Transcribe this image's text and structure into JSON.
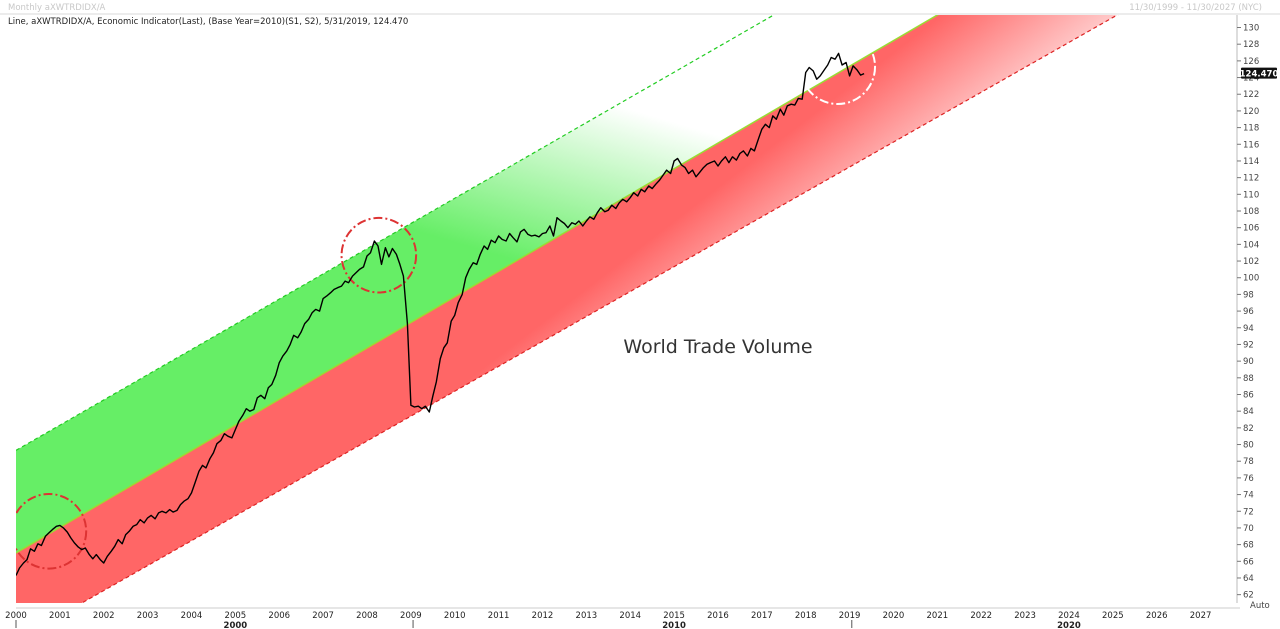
{
  "header": {
    "title": "Monthly aXWTRDIDX/A",
    "date_range": "11/30/1999 - 11/30/2027 (NYC)",
    "legend": "Line, aXWTRDIDX/A, Economic Indicator(Last), (Base Year=2010)(S1, S2), 5/31/2019, 124.470"
  },
  "auto_label": "Auto",
  "colors": {
    "line": "#000000",
    "upper_channel": "#22cc22",
    "mid_line": "#99dd33",
    "lower_channel": "#dd2222",
    "green_fill": "#66ee66",
    "red_fill": "#ff6666",
    "circle_red": "#dd3333",
    "circle_white": "#ffffff",
    "last_value_bg": "#111111"
  },
  "chart_data": {
    "type": "line",
    "annotation": "World Trade Volume",
    "last_value_label": "124.470",
    "xlim": [
      2000.0,
      2027.83
    ],
    "ylim": [
      61,
      131.5
    ],
    "grid": false,
    "y_axis_side": "right",
    "y_ticks": [
      62,
      64,
      66,
      68,
      70,
      72,
      74,
      76,
      78,
      80,
      82,
      84,
      86,
      88,
      90,
      92,
      94,
      96,
      98,
      100,
      102,
      104,
      106,
      108,
      110,
      112,
      114,
      116,
      118,
      120,
      122,
      124,
      126,
      128,
      130
    ],
    "x_ticks": [
      2000,
      2001,
      2002,
      2003,
      2004,
      2005,
      2006,
      2007,
      2008,
      2009,
      2010,
      2011,
      2012,
      2013,
      2014,
      2015,
      2016,
      2017,
      2018,
      2019,
      2020,
      2021,
      2022,
      2023,
      2024,
      2025,
      2026,
      2027
    ],
    "decade_labels": [
      {
        "x": 2005,
        "label": "2000"
      },
      {
        "x": 2015,
        "label": "2010"
      },
      {
        "x": 2024,
        "label": "2020"
      }
    ],
    "channel": {
      "upper": [
        [
          2000.0,
          79.3
        ],
        [
          2017.27,
          131.5
        ]
      ],
      "middle": [
        [
          2000.0,
          67.0
        ],
        [
          2021.0,
          131.5
        ]
      ],
      "lower": [
        [
          2001.5,
          61.0
        ],
        [
          2025.1,
          131.5
        ]
      ]
    },
    "highlights": [
      {
        "center": [
          2000.75,
          69.6
        ],
        "radius_years": 0.85,
        "color": "red"
      },
      {
        "center": [
          2008.27,
          102.7
        ],
        "radius_years": 0.85,
        "color": "red"
      },
      {
        "center": [
          2018.73,
          125.3
        ],
        "radius_years": 0.85,
        "color": "white"
      }
    ],
    "series": [
      {
        "points": [
          [
            2000.0,
            64.3
          ],
          [
            2000.08,
            65.2
          ],
          [
            2000.17,
            65.8
          ],
          [
            2000.25,
            66.2
          ],
          [
            2000.33,
            67.5
          ],
          [
            2000.42,
            67.2
          ],
          [
            2000.5,
            68.1
          ],
          [
            2000.58,
            67.9
          ],
          [
            2000.67,
            69.0
          ],
          [
            2000.75,
            69.4
          ],
          [
            2000.83,
            69.8
          ],
          [
            2000.92,
            70.2
          ],
          [
            2001.0,
            70.3
          ],
          [
            2001.08,
            70.0
          ],
          [
            2001.17,
            69.5
          ],
          [
            2001.25,
            68.8
          ],
          [
            2001.33,
            68.2
          ],
          [
            2001.42,
            67.7
          ],
          [
            2001.5,
            67.4
          ],
          [
            2001.58,
            67.6
          ],
          [
            2001.67,
            66.8
          ],
          [
            2001.75,
            66.3
          ],
          [
            2001.83,
            66.8
          ],
          [
            2001.92,
            66.2
          ],
          [
            2002.0,
            65.8
          ],
          [
            2002.08,
            66.6
          ],
          [
            2002.17,
            67.2
          ],
          [
            2002.25,
            67.8
          ],
          [
            2002.33,
            68.6
          ],
          [
            2002.42,
            68.1
          ],
          [
            2002.5,
            69.2
          ],
          [
            2002.58,
            69.6
          ],
          [
            2002.67,
            70.2
          ],
          [
            2002.75,
            70.4
          ],
          [
            2002.83,
            71.0
          ],
          [
            2002.92,
            70.6
          ],
          [
            2003.0,
            71.2
          ],
          [
            2003.08,
            71.5
          ],
          [
            2003.17,
            71.1
          ],
          [
            2003.25,
            71.8
          ],
          [
            2003.33,
            72.0
          ],
          [
            2003.42,
            71.8
          ],
          [
            2003.5,
            72.2
          ],
          [
            2003.58,
            71.9
          ],
          [
            2003.67,
            72.1
          ],
          [
            2003.75,
            72.8
          ],
          [
            2003.83,
            73.2
          ],
          [
            2003.92,
            73.5
          ],
          [
            2004.0,
            74.2
          ],
          [
            2004.08,
            75.4
          ],
          [
            2004.17,
            76.8
          ],
          [
            2004.25,
            77.5
          ],
          [
            2004.33,
            77.2
          ],
          [
            2004.42,
            78.3
          ],
          [
            2004.5,
            79.0
          ],
          [
            2004.58,
            80.1
          ],
          [
            2004.67,
            80.5
          ],
          [
            2004.75,
            81.3
          ],
          [
            2004.83,
            81.0
          ],
          [
            2004.92,
            80.8
          ],
          [
            2005.0,
            81.8
          ],
          [
            2005.08,
            82.8
          ],
          [
            2005.17,
            83.5
          ],
          [
            2005.25,
            84.3
          ],
          [
            2005.33,
            84.0
          ],
          [
            2005.42,
            84.2
          ],
          [
            2005.5,
            85.6
          ],
          [
            2005.58,
            85.9
          ],
          [
            2005.67,
            85.5
          ],
          [
            2005.75,
            86.8
          ],
          [
            2005.83,
            87.2
          ],
          [
            2005.92,
            88.3
          ],
          [
            2006.0,
            89.8
          ],
          [
            2006.08,
            90.6
          ],
          [
            2006.17,
            91.2
          ],
          [
            2006.25,
            92.0
          ],
          [
            2006.33,
            93.1
          ],
          [
            2006.42,
            92.8
          ],
          [
            2006.5,
            93.5
          ],
          [
            2006.58,
            94.5
          ],
          [
            2006.67,
            95.0
          ],
          [
            2006.75,
            95.8
          ],
          [
            2006.83,
            96.2
          ],
          [
            2006.92,
            96.0
          ],
          [
            2007.0,
            97.5
          ],
          [
            2007.08,
            97.8
          ],
          [
            2007.17,
            98.2
          ],
          [
            2007.25,
            98.6
          ],
          [
            2007.33,
            98.8
          ],
          [
            2007.42,
            99.0
          ],
          [
            2007.5,
            99.6
          ],
          [
            2007.58,
            99.4
          ],
          [
            2007.67,
            100.2
          ],
          [
            2007.75,
            100.6
          ],
          [
            2007.83,
            101.0
          ],
          [
            2007.92,
            101.3
          ],
          [
            2008.0,
            102.6
          ],
          [
            2008.08,
            103.0
          ],
          [
            2008.17,
            104.4
          ],
          [
            2008.25,
            103.8
          ],
          [
            2008.33,
            101.6
          ],
          [
            2008.42,
            103.6
          ],
          [
            2008.5,
            102.5
          ],
          [
            2008.58,
            103.5
          ],
          [
            2008.67,
            102.8
          ],
          [
            2008.75,
            101.6
          ],
          [
            2008.83,
            100.2
          ],
          [
            2008.92,
            94.5
          ],
          [
            2009.0,
            84.7
          ],
          [
            2009.08,
            84.5
          ],
          [
            2009.17,
            84.6
          ],
          [
            2009.25,
            84.3
          ],
          [
            2009.33,
            84.6
          ],
          [
            2009.42,
            83.9
          ],
          [
            2009.5,
            85.8
          ],
          [
            2009.58,
            87.5
          ],
          [
            2009.67,
            90.3
          ],
          [
            2009.75,
            91.6
          ],
          [
            2009.83,
            92.2
          ],
          [
            2009.92,
            94.8
          ],
          [
            2010.0,
            95.5
          ],
          [
            2010.08,
            97.0
          ],
          [
            2010.17,
            98.0
          ],
          [
            2010.25,
            100.0
          ],
          [
            2010.33,
            101.0
          ],
          [
            2010.42,
            101.8
          ],
          [
            2010.5,
            101.6
          ],
          [
            2010.58,
            102.8
          ],
          [
            2010.67,
            103.8
          ],
          [
            2010.75,
            103.4
          ],
          [
            2010.83,
            104.5
          ],
          [
            2010.92,
            104.2
          ],
          [
            2011.0,
            105.0
          ],
          [
            2011.08,
            104.6
          ],
          [
            2011.17,
            104.4
          ],
          [
            2011.25,
            105.3
          ],
          [
            2011.33,
            104.8
          ],
          [
            2011.42,
            104.3
          ],
          [
            2011.5,
            105.5
          ],
          [
            2011.58,
            105.8
          ],
          [
            2011.67,
            105.2
          ],
          [
            2011.75,
            105.0
          ],
          [
            2011.83,
            105.1
          ],
          [
            2011.92,
            104.9
          ],
          [
            2012.0,
            105.3
          ],
          [
            2012.08,
            105.4
          ],
          [
            2012.17,
            106.2
          ],
          [
            2012.25,
            105.0
          ],
          [
            2012.33,
            107.2
          ],
          [
            2012.42,
            106.8
          ],
          [
            2012.5,
            106.5
          ],
          [
            2012.58,
            106.0
          ],
          [
            2012.67,
            106.6
          ],
          [
            2012.75,
            106.4
          ],
          [
            2012.83,
            106.8
          ],
          [
            2012.92,
            106.2
          ],
          [
            2013.0,
            106.8
          ],
          [
            2013.08,
            107.3
          ],
          [
            2013.17,
            107.0
          ],
          [
            2013.25,
            107.8
          ],
          [
            2013.33,
            108.4
          ],
          [
            2013.42,
            107.9
          ],
          [
            2013.5,
            108.1
          ],
          [
            2013.58,
            108.7
          ],
          [
            2013.67,
            108.3
          ],
          [
            2013.75,
            109.0
          ],
          [
            2013.83,
            109.4
          ],
          [
            2013.92,
            109.1
          ],
          [
            2014.0,
            109.6
          ],
          [
            2014.08,
            110.2
          ],
          [
            2014.17,
            109.8
          ],
          [
            2014.25,
            110.6
          ],
          [
            2014.33,
            110.3
          ],
          [
            2014.42,
            111.0
          ],
          [
            2014.5,
            110.7
          ],
          [
            2014.58,
            111.2
          ],
          [
            2014.67,
            111.7
          ],
          [
            2014.75,
            112.3
          ],
          [
            2014.83,
            112.9
          ],
          [
            2014.92,
            112.5
          ],
          [
            2015.0,
            114.0
          ],
          [
            2015.08,
            114.3
          ],
          [
            2015.17,
            113.5
          ],
          [
            2015.25,
            113.2
          ],
          [
            2015.33,
            112.5
          ],
          [
            2015.42,
            112.9
          ],
          [
            2015.5,
            112.1
          ],
          [
            2015.58,
            112.6
          ],
          [
            2015.67,
            113.2
          ],
          [
            2015.75,
            113.6
          ],
          [
            2015.83,
            113.8
          ],
          [
            2015.92,
            114.0
          ],
          [
            2016.0,
            113.4
          ],
          [
            2016.08,
            114.0
          ],
          [
            2016.17,
            114.5
          ],
          [
            2016.25,
            113.8
          ],
          [
            2016.33,
            114.5
          ],
          [
            2016.42,
            114.1
          ],
          [
            2016.5,
            114.9
          ],
          [
            2016.58,
            115.2
          ],
          [
            2016.67,
            114.6
          ],
          [
            2016.75,
            115.5
          ],
          [
            2016.83,
            115.2
          ],
          [
            2016.92,
            116.6
          ],
          [
            2017.0,
            117.8
          ],
          [
            2017.08,
            118.4
          ],
          [
            2017.17,
            118.0
          ],
          [
            2017.25,
            119.4
          ],
          [
            2017.33,
            119.0
          ],
          [
            2017.42,
            120.2
          ],
          [
            2017.5,
            119.5
          ],
          [
            2017.58,
            120.6
          ],
          [
            2017.67,
            120.8
          ],
          [
            2017.75,
            120.7
          ],
          [
            2017.83,
            121.5
          ],
          [
            2017.92,
            121.4
          ],
          [
            2018.0,
            124.6
          ],
          [
            2018.08,
            125.2
          ],
          [
            2018.17,
            124.8
          ],
          [
            2018.25,
            123.8
          ],
          [
            2018.33,
            124.2
          ],
          [
            2018.42,
            124.9
          ],
          [
            2018.5,
            125.5
          ],
          [
            2018.58,
            126.4
          ],
          [
            2018.67,
            126.2
          ],
          [
            2018.75,
            126.9
          ],
          [
            2018.83,
            125.5
          ],
          [
            2018.92,
            125.8
          ],
          [
            2019.0,
            124.2
          ],
          [
            2019.08,
            125.4
          ],
          [
            2019.17,
            124.9
          ],
          [
            2019.25,
            124.3
          ],
          [
            2019.33,
            124.47
          ]
        ]
      }
    ]
  }
}
